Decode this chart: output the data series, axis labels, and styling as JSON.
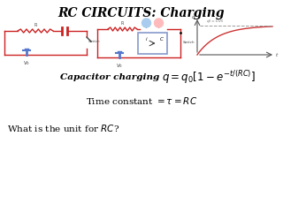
{
  "title": "RC CIRCUITS: Charging",
  "title_fontsize": 10,
  "bg_color": "#ffffff",
  "formula_label": "Capacitor charging",
  "formula_text": "$q = q_0\\left[1 - e^{-t/(RC)}\\right]$",
  "time_constant_text": "Time constant $= \\tau = RC$",
  "question_text": "What is the unit for $RC$?",
  "c1": "#cc2222",
  "c2": "#5577cc",
  "cap_box": "#8899cc",
  "graph_color": "#cc3333",
  "dash_color": "#999999"
}
